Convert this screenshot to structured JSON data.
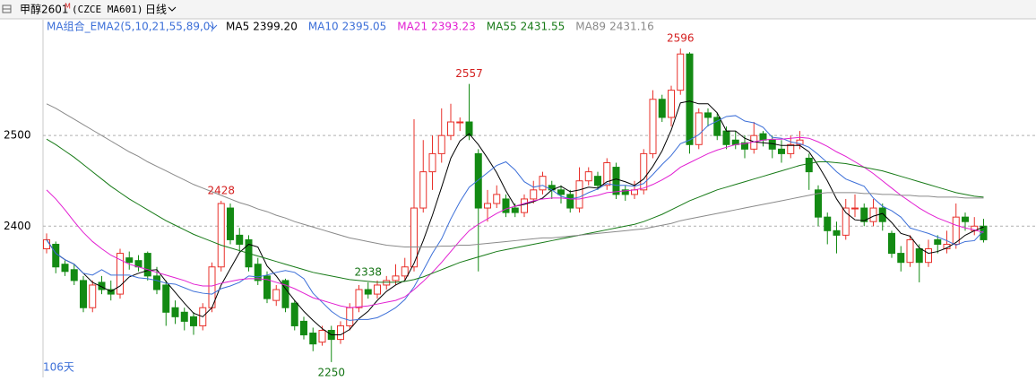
{
  "chart_data": {
    "type": "candlestick",
    "title": "甲醇2601",
    "title_sup": "M",
    "subtitle": "(CZCE MA601)",
    "period": "日线",
    "indicator": "MA组合_EMA2(5,10,21,55,89,0)",
    "count_label": "106天",
    "up_color": "#e8302a",
    "down_color": "#138a13",
    "ylim": [
      2239,
      2610
    ],
    "yticks": [
      2400,
      2500
    ],
    "grid": true,
    "open": [
      2375,
      2380,
      2358,
      2352,
      2340,
      2310,
      2338,
      2330,
      2325,
      2365,
      2362,
      2370,
      2345,
      2335,
      2310,
      2305,
      2300,
      2290,
      2310,
      2355,
      2420,
      2390,
      2385,
      2358,
      2345,
      2318,
      2340,
      2315,
      2295,
      2282,
      2272,
      2285,
      2275,
      2290,
      2310,
      2330,
      2325,
      2335,
      2340,
      2345,
      2355,
      2420,
      2460,
      2480,
      2500,
      2515,
      2515,
      2480,
      2420,
      2425,
      2430,
      2420,
      2415,
      2430,
      2440,
      2445,
      2440,
      2435,
      2420,
      2450,
      2455,
      2445,
      2465,
      2440,
      2435,
      2440,
      2480,
      2540,
      2520,
      2550,
      2590,
      2490,
      2525,
      2520,
      2505,
      2495,
      2492,
      2485,
      2502,
      2495,
      2485,
      2480,
      2490,
      2475,
      2440,
      2410,
      2395,
      2390,
      2420,
      2420,
      2405,
      2420,
      2392,
      2370,
      2360,
      2375,
      2360,
      2385,
      2375,
      2380,
      2410,
      2395,
      2400
    ],
    "high": [
      2392,
      2383,
      2362,
      2358,
      2345,
      2340,
      2345,
      2340,
      2375,
      2372,
      2368,
      2372,
      2355,
      2340,
      2318,
      2310,
      2305,
      2315,
      2360,
      2428,
      2425,
      2398,
      2390,
      2365,
      2350,
      2335,
      2342,
      2318,
      2300,
      2288,
      2290,
      2290,
      2295,
      2315,
      2335,
      2338,
      2340,
      2345,
      2358,
      2365,
      2518,
      2495,
      2500,
      2530,
      2535,
      2520,
      2557,
      2485,
      2440,
      2445,
      2435,
      2425,
      2435,
      2450,
      2460,
      2450,
      2445,
      2440,
      2465,
      2465,
      2460,
      2475,
      2470,
      2445,
      2450,
      2485,
      2550,
      2545,
      2555,
      2596,
      2592,
      2530,
      2530,
      2525,
      2510,
      2505,
      2500,
      2515,
      2505,
      2500,
      2495,
      2500,
      2505,
      2480,
      2445,
      2415,
      2405,
      2430,
      2435,
      2425,
      2430,
      2425,
      2395,
      2378,
      2390,
      2380,
      2385,
      2390,
      2395,
      2425,
      2415,
      2410,
      2408
    ],
    "low": [
      2370,
      2348,
      2345,
      2335,
      2305,
      2305,
      2325,
      2318,
      2320,
      2352,
      2350,
      2340,
      2325,
      2290,
      2292,
      2285,
      2280,
      2285,
      2305,
      2350,
      2380,
      2372,
      2350,
      2335,
      2315,
      2312,
      2305,
      2285,
      2275,
      2262,
      2268,
      2250,
      2270,
      2285,
      2305,
      2320,
      2320,
      2330,
      2335,
      2340,
      2350,
      2415,
      2440,
      2470,
      2495,
      2505,
      2495,
      2350,
      2405,
      2420,
      2410,
      2410,
      2410,
      2425,
      2435,
      2430,
      2425,
      2415,
      2415,
      2445,
      2440,
      2440,
      2430,
      2428,
      2430,
      2435,
      2475,
      2515,
      2510,
      2545,
      2480,
      2485,
      2510,
      2495,
      2485,
      2485,
      2475,
      2480,
      2488,
      2475,
      2470,
      2475,
      2485,
      2440,
      2400,
      2380,
      2370,
      2385,
      2410,
      2400,
      2400,
      2395,
      2365,
      2350,
      2355,
      2338,
      2355,
      2370,
      2370,
      2375,
      2395,
      2390,
      2382
    ],
    "close": [
      2385,
      2355,
      2350,
      2340,
      2310,
      2335,
      2330,
      2325,
      2370,
      2360,
      2355,
      2345,
      2330,
      2305,
      2300,
      2295,
      2290,
      2310,
      2355,
      2425,
      2385,
      2380,
      2355,
      2340,
      2320,
      2330,
      2310,
      2290,
      2280,
      2270,
      2285,
      2275,
      2290,
      2310,
      2330,
      2325,
      2335,
      2340,
      2345,
      2355,
      2420,
      2460,
      2480,
      2500,
      2515,
      2515,
      2500,
      2420,
      2425,
      2435,
      2415,
      2415,
      2430,
      2440,
      2455,
      2440,
      2435,
      2420,
      2450,
      2460,
      2445,
      2470,
      2435,
      2435,
      2440,
      2480,
      2540,
      2520,
      2550,
      2590,
      2490,
      2525,
      2520,
      2500,
      2490,
      2490,
      2485,
      2500,
      2495,
      2485,
      2480,
      2490,
      2495,
      2460,
      2410,
      2395,
      2390,
      2420,
      2420,
      2405,
      2420,
      2405,
      2370,
      2360,
      2385,
      2360,
      2375,
      2380,
      2380,
      2410,
      2405,
      2400,
      2385
    ],
    "series": [
      {
        "name": "MA5",
        "color": "#000000",
        "last": {
          "value": 2399.2,
          "label": "2399.20"
        },
        "values": [
          2385,
          2370,
          2363,
          2358,
          2348,
          2338,
          2333,
          2328,
          2334,
          2344,
          2348,
          2351,
          2352,
          2339,
          2327,
          2315,
          2304,
          2300,
          2310,
          2335,
          2353,
          2371,
          2380,
          2377,
          2356,
          2345,
          2331,
          2318,
          2306,
          2296,
          2287,
          2280,
          2280,
          2286,
          2298,
          2306,
          2318,
          2328,
          2335,
          2340,
          2359,
          2384,
          2412,
          2443,
          2475,
          2494,
          2502,
          2490,
          2475,
          2459,
          2439,
          2422,
          2424,
          2427,
          2431,
          2440,
          2444,
          2438,
          2440,
          2443,
          2442,
          2449,
          2452,
          2449,
          2445,
          2452,
          2466,
          2483,
          2506,
          2536,
          2538,
          2535,
          2535,
          2525,
          2505,
          2505,
          2497,
          2493,
          2492,
          2491,
          2489,
          2489,
          2489,
          2482,
          2467,
          2450,
          2430,
          2415,
          2407,
          2406,
          2411,
          2414,
          2404,
          2392,
          2389,
          2376,
          2370,
          2372,
          2376,
          2382,
          2390,
          2395,
          2399
        ]
      },
      {
        "name": "MA10",
        "color": "#3c6fd8",
        "last": {
          "value": 2395.05,
          "label": "2395.05"
        },
        "values": [
          2385,
          2370,
          2363,
          2358,
          2348,
          2346,
          2352,
          2346,
          2346,
          2346,
          2343,
          2342,
          2340,
          2337,
          2336,
          2332,
          2328,
          2326,
          2325,
          2331,
          2334,
          2338,
          2345,
          2344,
          2346,
          2349,
          2351,
          2349,
          2342,
          2326,
          2316,
          2306,
          2299,
          2296,
          2297,
          2297,
          2299,
          2304,
          2310,
          2319,
          2333,
          2351,
          2370,
          2386,
          2408,
          2427,
          2443,
          2451,
          2459,
          2467,
          2471,
          2462,
          2449,
          2443,
          2445,
          2440,
          2433,
          2430,
          2432,
          2437,
          2441,
          2447,
          2445,
          2445,
          2444,
          2447,
          2457,
          2468,
          2478,
          2491,
          2495,
          2501,
          2511,
          2516,
          2521,
          2522,
          2516,
          2514,
          2509,
          2498,
          2497,
          2493,
          2491,
          2487,
          2479,
          2470,
          2460,
          2452,
          2448,
          2444,
          2431,
          2422,
          2417,
          2410,
          2398,
          2395,
          2392,
          2388,
          2384,
          2379,
          2383,
          2384,
          2395
        ]
      },
      {
        "name": "MA21",
        "color": "#e21fd2",
        "last": {
          "value": 2393.23,
          "label": "2393.23"
        },
        "values": [
          2440,
          2430,
          2418,
          2405,
          2393,
          2383,
          2375,
          2368,
          2363,
          2358,
          2355,
          2352,
          2349,
          2346,
          2343,
          2340,
          2336,
          2334,
          2334,
          2337,
          2339,
          2341,
          2342,
          2342,
          2341,
          2338,
          2335,
          2331,
          2326,
          2321,
          2318,
          2315,
          2312,
          2310,
          2311,
          2312,
          2314,
          2316,
          2318,
          2322,
          2330,
          2339,
          2349,
          2360,
          2372,
          2384,
          2395,
          2402,
          2408,
          2414,
          2419,
          2422,
          2425,
          2428,
          2430,
          2431,
          2431,
          2430,
          2430,
          2432,
          2434,
          2437,
          2438,
          2439,
          2440,
          2442,
          2446,
          2451,
          2457,
          2465,
          2470,
          2475,
          2480,
          2484,
          2487,
          2490,
          2491,
          2493,
          2495,
          2496,
          2496,
          2497,
          2498,
          2497,
          2493,
          2488,
          2482,
          2477,
          2471,
          2465,
          2458,
          2450,
          2442,
          2434,
          2427,
          2420,
          2414,
          2409,
          2405,
          2401,
          2398,
          2396,
          2393
        ]
      },
      {
        "name": "MA55",
        "color": "#177a17",
        "last": {
          "value": 2431.55,
          "label": "2431.55"
        },
        "values": [
          2496,
          2490,
          2483,
          2476,
          2468,
          2460,
          2452,
          2444,
          2437,
          2430,
          2424,
          2418,
          2412,
          2406,
          2401,
          2396,
          2391,
          2387,
          2383,
          2379,
          2376,
          2373,
          2370,
          2367,
          2364,
          2361,
          2358,
          2355,
          2352,
          2349,
          2347,
          2345,
          2343,
          2341,
          2340,
          2339,
          2338,
          2338,
          2338,
          2339,
          2341,
          2344,
          2348,
          2352,
          2356,
          2360,
          2363,
          2366,
          2369,
          2372,
          2374,
          2376,
          2378,
          2380,
          2382,
          2384,
          2386,
          2388,
          2390,
          2392,
          2394,
          2396,
          2398,
          2400,
          2402,
          2405,
          2409,
          2413,
          2418,
          2423,
          2428,
          2432,
          2436,
          2440,
          2443,
          2446,
          2449,
          2452,
          2455,
          2458,
          2461,
          2464,
          2467,
          2469,
          2471,
          2471,
          2470,
          2469,
          2467,
          2465,
          2463,
          2461,
          2458,
          2455,
          2452,
          2449,
          2446,
          2443,
          2440,
          2437,
          2435,
          2433,
          2432
        ]
      },
      {
        "name": "MA89",
        "color": "#8a8a8a",
        "last": {
          "value": 2431.16,
          "label": "2431.16"
        },
        "values": [
          2535,
          2530,
          2524,
          2518,
          2512,
          2506,
          2500,
          2494,
          2488,
          2482,
          2477,
          2471,
          2466,
          2461,
          2456,
          2451,
          2446,
          2442,
          2438,
          2434,
          2430,
          2426,
          2423,
          2419,
          2416,
          2412,
          2409,
          2405,
          2402,
          2399,
          2396,
          2393,
          2390,
          2387,
          2385,
          2383,
          2381,
          2379,
          2378,
          2377,
          2377,
          2377,
          2377,
          2378,
          2378,
          2379,
          2379,
          2380,
          2381,
          2382,
          2383,
          2384,
          2385,
          2386,
          2387,
          2387,
          2388,
          2389,
          2390,
          2391,
          2392,
          2393,
          2394,
          2395,
          2396,
          2397,
          2399,
          2401,
          2403,
          2406,
          2408,
          2410,
          2412,
          2414,
          2416,
          2418,
          2420,
          2422,
          2424,
          2426,
          2428,
          2430,
          2432,
          2434,
          2436,
          2437,
          2437,
          2437,
          2437,
          2436,
          2436,
          2435,
          2435,
          2434,
          2434,
          2433,
          2433,
          2432,
          2432,
          2432,
          2431,
          2431,
          2431
        ]
      }
    ],
    "annotations": [
      {
        "value": 2596,
        "label": "2596",
        "color": "#d42020"
      },
      {
        "value": 2557,
        "label": "2557",
        "color": "#d42020"
      },
      {
        "value": 2428,
        "label": "2428",
        "color": "#d42020"
      },
      {
        "value": 2250,
        "label": "2250",
        "color": "#137313"
      },
      {
        "value": 2338,
        "label": "2338",
        "color": "#137313"
      }
    ]
  }
}
